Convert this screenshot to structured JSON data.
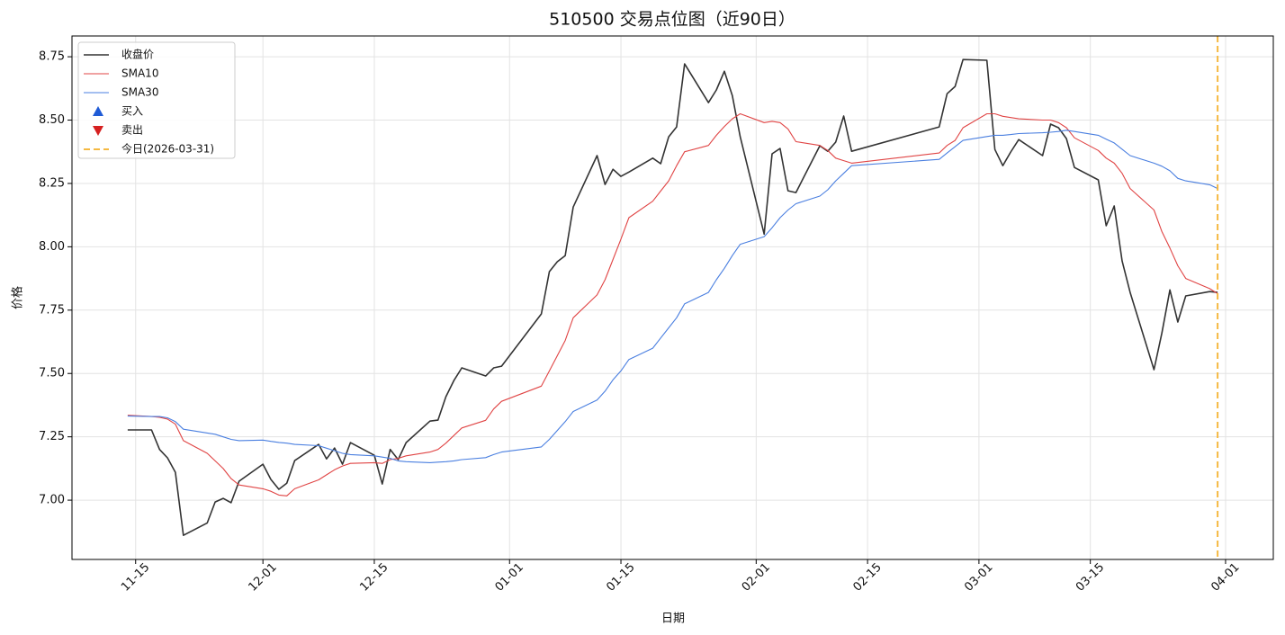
{
  "chart_data": {
    "type": "line",
    "title": "510500 交易点位图（近90日）",
    "x_label": "日期",
    "y_label": "价格",
    "x": [
      "11-14",
      "11-17",
      "11-18",
      "11-19",
      "11-20",
      "11-21",
      "11-24",
      "11-25",
      "11-26",
      "11-27",
      "11-28",
      "12-01",
      "12-02",
      "12-03",
      "12-04",
      "12-05",
      "12-08",
      "12-09",
      "12-10",
      "12-11",
      "12-12",
      "12-15",
      "12-16",
      "12-17",
      "12-18",
      "12-19",
      "12-22",
      "12-23",
      "12-24",
      "12-25",
      "12-26",
      "12-29",
      "12-30",
      "12-31",
      "01-05",
      "01-06",
      "01-07",
      "01-08",
      "01-09",
      "01-12",
      "01-13",
      "01-14",
      "01-15",
      "01-16",
      "01-19",
      "01-20",
      "01-21",
      "01-22",
      "01-23",
      "01-26",
      "01-27",
      "01-28",
      "01-29",
      "01-30",
      "02-02",
      "02-03",
      "02-04",
      "02-05",
      "02-06",
      "02-09",
      "02-10",
      "02-11",
      "02-12",
      "02-13",
      "02-24",
      "02-25",
      "02-26",
      "02-27",
      "03-02",
      "03-03",
      "03-04",
      "03-05",
      "03-06",
      "03-09",
      "03-10",
      "03-11",
      "03-12",
      "03-13",
      "03-16",
      "03-17",
      "03-18",
      "03-19",
      "03-20",
      "03-23",
      "03-24",
      "03-25",
      "03-26",
      "03-27",
      "03-30",
      "03-31"
    ],
    "series": [
      {
        "name": "收盘价",
        "color": "#333333",
        "width": 1.6,
        "values": [
          7.277,
          7.277,
          7.2,
          7.167,
          7.11,
          6.861,
          6.91,
          6.993,
          7.007,
          6.99,
          7.075,
          7.142,
          7.082,
          7.043,
          7.067,
          7.156,
          7.22,
          7.163,
          7.206,
          7.142,
          7.227,
          7.177,
          7.064,
          7.2,
          7.16,
          7.227,
          7.312,
          7.316,
          7.408,
          7.472,
          7.522,
          7.49,
          7.522,
          7.529,
          7.735,
          7.902,
          7.941,
          7.965,
          8.157,
          8.36,
          8.246,
          8.306,
          8.278,
          8.295,
          8.35,
          8.328,
          8.434,
          8.473,
          8.722,
          8.569,
          8.619,
          8.693,
          8.597,
          8.434,
          8.05,
          8.367,
          8.388,
          8.221,
          8.214,
          8.399,
          8.377,
          8.413,
          8.516,
          8.377,
          8.473,
          8.604,
          8.633,
          8.739,
          8.736,
          8.384,
          8.32,
          8.374,
          8.423,
          8.36,
          8.484,
          8.47,
          8.427,
          8.313,
          8.264,
          8.083,
          8.161,
          7.944,
          7.82,
          7.515,
          7.66,
          7.83,
          7.703,
          7.806,
          7.823,
          7.82
        ]
      },
      {
        "name": "SMA10",
        "color": "#e04444",
        "width": 1.1,
        "values": [
          7.335,
          7.33,
          7.327,
          7.32,
          7.3,
          7.235,
          7.185,
          7.155,
          7.125,
          7.085,
          7.06,
          7.045,
          7.035,
          7.02,
          7.017,
          7.045,
          7.08,
          7.1,
          7.12,
          7.135,
          7.145,
          7.148,
          7.145,
          7.16,
          7.165,
          7.175,
          7.19,
          7.2,
          7.225,
          7.255,
          7.285,
          7.315,
          7.36,
          7.39,
          7.45,
          7.51,
          7.57,
          7.63,
          7.72,
          7.81,
          7.87,
          7.95,
          8.03,
          8.115,
          8.18,
          8.22,
          8.26,
          8.32,
          8.375,
          8.4,
          8.44,
          8.475,
          8.505,
          8.525,
          8.49,
          8.495,
          8.49,
          8.465,
          8.415,
          8.4,
          8.38,
          8.35,
          8.34,
          8.33,
          8.37,
          8.4,
          8.42,
          8.47,
          8.525,
          8.525,
          8.515,
          8.51,
          8.505,
          8.5,
          8.5,
          8.49,
          8.47,
          8.43,
          8.38,
          8.35,
          8.33,
          8.29,
          8.23,
          8.145,
          8.06,
          7.995,
          7.925,
          7.875,
          7.835,
          7.815
        ]
      },
      {
        "name": "SMA30",
        "color": "#4a7fe0",
        "width": 1.1,
        "values": [
          7.332,
          7.33,
          7.33,
          7.325,
          7.31,
          7.28,
          7.265,
          7.26,
          7.25,
          7.24,
          7.235,
          7.237,
          7.232,
          7.228,
          7.225,
          7.22,
          7.215,
          7.205,
          7.195,
          7.185,
          7.18,
          7.175,
          7.17,
          7.165,
          7.155,
          7.152,
          7.148,
          7.15,
          7.152,
          7.155,
          7.16,
          7.168,
          7.18,
          7.19,
          7.21,
          7.24,
          7.275,
          7.31,
          7.35,
          7.395,
          7.43,
          7.475,
          7.51,
          7.555,
          7.6,
          7.64,
          7.68,
          7.72,
          7.775,
          7.82,
          7.87,
          7.915,
          7.965,
          8.01,
          8.04,
          8.075,
          8.115,
          8.145,
          8.17,
          8.2,
          8.225,
          8.26,
          8.29,
          8.32,
          8.345,
          8.37,
          8.395,
          8.42,
          8.435,
          8.44,
          8.44,
          8.443,
          8.447,
          8.45,
          8.452,
          8.455,
          8.46,
          8.455,
          8.44,
          8.425,
          8.41,
          8.385,
          8.36,
          8.33,
          8.318,
          8.3,
          8.27,
          8.26,
          8.245,
          8.23
        ]
      }
    ],
    "markers": [
      {
        "name": "买入",
        "color": "#1f5bd6",
        "symbol": "triangle-up"
      },
      {
        "name": "卖出",
        "color": "#d62020",
        "symbol": "triangle-down"
      }
    ],
    "today": {
      "label": "今日(2026-03-31)",
      "x": "03-31",
      "color": "#f5b942"
    },
    "xlim": [
      "11-07",
      "04-07"
    ],
    "xticks": [
      "11-15",
      "12-01",
      "12-15",
      "01-01",
      "01-15",
      "02-01",
      "02-15",
      "03-01",
      "03-15",
      "04-01"
    ],
    "ylim": [
      6.766,
      8.832
    ],
    "yticks": [
      {
        "value": 7,
        "label": "7.00"
      },
      7.25,
      {
        "value": 7.5,
        "label": "7.50"
      },
      7.75,
      {
        "value": 8,
        "label": "8.00"
      },
      8.25,
      {
        "value": 8.5,
        "label": "8.50"
      },
      8.75
    ],
    "grid": true,
    "legend": "upper left"
  }
}
